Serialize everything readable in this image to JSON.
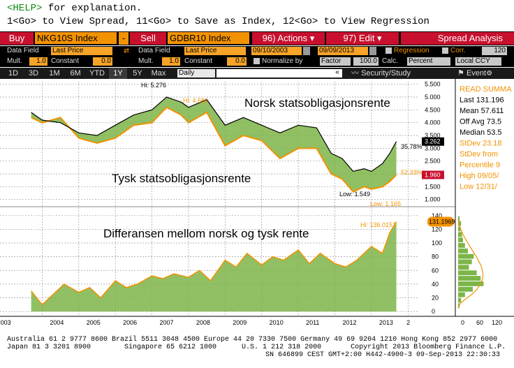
{
  "help": {
    "key": "<HELP>",
    "text": " for explanation."
  },
  "hint_line": "1<Go> to View Spread, 11<Go> to Save as Index, 12<Go> to View Regression",
  "toolbar": {
    "buy": "Buy",
    "security1": "NKG10S Index",
    "minus": "-",
    "sell": "Sell",
    "security2": "GDBR10 Index",
    "actions": "96) Actions",
    "edit": "97) Edit",
    "spread_analysis": "Spread Analysis"
  },
  "params": {
    "data_field_label": "Data Field",
    "data_field_1": "Last Price",
    "data_field_2": "Last Price",
    "mult_label": "Mult.",
    "mult_1": "1.0",
    "mult_2": "1.0",
    "constant_label": "Constant",
    "constant_1": "0.0",
    "constant_2": "0.0",
    "date_from": "09/10/2003",
    "date_to": "09/09/2013",
    "regression": "Regression",
    "corr": "Corr.",
    "corr_value": "120",
    "normalize_by": "Normalize by",
    "factor": "Factor",
    "factor_value": "100.0",
    "calc_label": "Calc.",
    "calc_value": "Percent",
    "ccy": "Local CCY"
  },
  "periods": [
    "1D",
    "3D",
    "1M",
    "6M",
    "YTD",
    "1Y",
    "5Y",
    "Max"
  ],
  "selected_period": "1Y",
  "frequency": "Daily",
  "security_study": "Security/Study",
  "event": "Event",
  "annotations": {
    "norsk": "Norsk statsobligasjonsrente",
    "tysk": "Tysk statsobligasjonsrente",
    "diff": "Differansen mellom norsk og tysk rente",
    "hi1": "Hi: 5.276",
    "hi2": "Hi: 4.681",
    "low1": "Low: 1.549",
    "low2": "Low: 1.165",
    "hi3": "Hi: 136.0151",
    "pct": "35.78%",
    "pct2": "52.33%",
    "last1": "3.262",
    "last2": "1.960",
    "last3": "131.1969"
  },
  "summary": [
    "READ SUMMA",
    "Last 131.196",
    "Mean 57.611",
    "Off Avg 73.5",
    "Median 53.5",
    "StDev 23.18",
    "StDev from",
    "Percentile 9",
    "High 09/05/",
    "Low 12/31/"
  ],
  "hist_axis": [
    "0",
    "60",
    "120"
  ],
  "chart_data": [
    {
      "type": "line",
      "title": "",
      "series": [
        {
          "name": "Norsk statsobligasjonsrente",
          "x": [
            2003.7,
            2004.0,
            2004.5,
            2005.0,
            2005.5,
            2006.0,
            2006.5,
            2007.0,
            2007.4,
            2007.8,
            2008.0,
            2008.5,
            2009.0,
            2009.5,
            2010.0,
            2010.5,
            2011.0,
            2011.5,
            2011.9,
            2012.2,
            2012.5,
            2012.8,
            2013.0,
            2013.3,
            2013.5,
            2013.68
          ],
          "values": [
            4.4,
            4.1,
            4.0,
            3.6,
            3.5,
            3.9,
            4.3,
            4.5,
            5.0,
            4.8,
            4.6,
            4.9,
            3.9,
            4.2,
            3.9,
            3.6,
            3.9,
            3.8,
            2.8,
            2.6,
            2.1,
            2.2,
            2.1,
            2.4,
            2.8,
            3.262
          ]
        },
        {
          "name": "Tysk statsobligasjonsrente",
          "x": [
            2003.7,
            2004.0,
            2004.5,
            2005.0,
            2005.5,
            2006.0,
            2006.5,
            2007.0,
            2007.4,
            2007.8,
            2008.0,
            2008.5,
            2009.0,
            2009.5,
            2010.0,
            2010.5,
            2011.0,
            2011.5,
            2011.9,
            2012.2,
            2012.5,
            2012.8,
            2013.0,
            2013.3,
            2013.5,
            2013.68
          ],
          "values": [
            4.2,
            4.0,
            4.2,
            3.4,
            3.2,
            3.4,
            3.9,
            4.0,
            4.6,
            4.3,
            4.0,
            4.4,
            3.1,
            3.5,
            3.3,
            2.6,
            3.0,
            3.0,
            2.0,
            1.8,
            1.3,
            1.5,
            1.4,
            1.5,
            1.7,
            1.96
          ]
        }
      ],
      "ylim": [
        0.8,
        5.6
      ],
      "yticks": [
        1.0,
        1.5,
        2.0,
        2.5,
        3.0,
        3.5,
        4.0,
        4.5,
        5.0,
        5.5
      ]
    },
    {
      "type": "area",
      "title": "",
      "series": [
        {
          "name": "Differansen mellom norsk og tysk rente",
          "x": [
            2003.7,
            2004.0,
            2004.3,
            2004.6,
            2005.0,
            2005.3,
            2005.6,
            2006.0,
            2006.3,
            2006.6,
            2007.0,
            2007.3,
            2007.6,
            2008.0,
            2008.3,
            2008.6,
            2009.0,
            2009.3,
            2009.6,
            2010.0,
            2010.3,
            2010.6,
            2011.0,
            2011.3,
            2011.6,
            2012.0,
            2012.3,
            2012.6,
            2013.0,
            2013.3,
            2013.5,
            2013.68
          ],
          "values": [
            30,
            10,
            25,
            40,
            28,
            35,
            20,
            45,
            35,
            40,
            52,
            48,
            55,
            50,
            60,
            45,
            75,
            65,
            85,
            68,
            80,
            75,
            90,
            70,
            85,
            70,
            65,
            75,
            95,
            85,
            115,
            131.1969
          ]
        }
      ],
      "ylim": [
        -5,
        150
      ],
      "yticks": [
        0,
        20,
        40,
        60,
        80,
        100,
        120,
        140
      ]
    }
  ],
  "x_axis": [
    "003",
    "2004",
    "2005",
    "2006",
    "2007",
    "2008",
    "2009",
    "2010",
    "2011",
    "2012",
    "2013",
    "2"
  ],
  "footer": {
    "line1": "Australia 61 2 9777 8600 Brazil 5511 3048 4500 Europe 44 20 7330 7500 Germany 49 69 9204 1210 Hong Kong 852 2977 6000",
    "line2": "Japan 81 3 3201 8900        Singapore 65 6212 1000      U.S. 1 212 318 2000       Copyright 2013 Bloomberg Finance L.P.",
    "line3": "SN 646899 CEST GMT+2:00 H442-4900-3 09-Sep-2013 22:30:33"
  },
  "colors": {
    "orange": "#f39200",
    "red": "#c8102e",
    "green": "#7cb548",
    "line": "#000000"
  }
}
